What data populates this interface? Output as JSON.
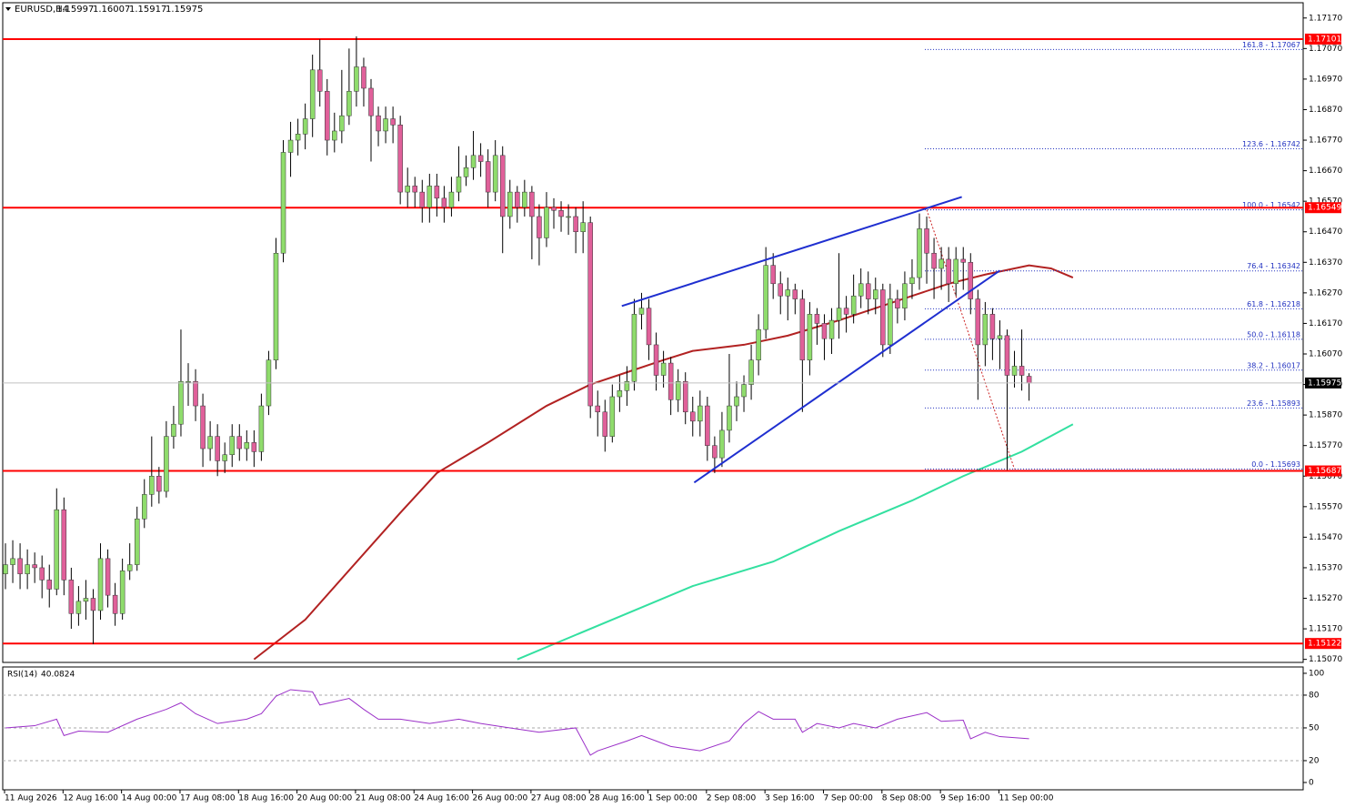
{
  "chart_data": {
    "type": "candlestick",
    "symbol": "EURUSD,H4",
    "ylim": [
      1.1506,
      1.1722
    ],
    "yticks": [
      {
        "value": 1.1717,
        "label": "1.17170"
      },
      {
        "value": 1.1707,
        "label": "1.17070"
      },
      {
        "value": 1.1697,
        "label": "1.16970"
      },
      {
        "value": 1.1687,
        "label": "1.16870"
      },
      {
        "value": 1.1677,
        "label": "1.16770"
      },
      {
        "value": 1.1667,
        "label": "1.16670"
      },
      {
        "value": 1.1657,
        "label": "1.16570"
      },
      {
        "value": 1.1647,
        "label": "1.16470"
      },
      {
        "value": 1.1637,
        "label": "1.16370"
      },
      {
        "value": 1.1627,
        "label": "1.16270"
      },
      {
        "value": 1.1617,
        "label": "1.16170"
      },
      {
        "value": 1.1607,
        "label": "1.16070"
      },
      {
        "value": 1.1597,
        "label": "1.15970"
      },
      {
        "value": 1.1587,
        "label": "1.15870"
      },
      {
        "value": 1.1577,
        "label": "1.15770"
      },
      {
        "value": 1.1567,
        "label": "1.15670"
      },
      {
        "value": 1.1557,
        "label": "1.15570"
      },
      {
        "value": 1.1547,
        "label": "1.15470"
      },
      {
        "value": 1.1537,
        "label": "1.15370"
      },
      {
        "value": 1.1527,
        "label": "1.15270"
      },
      {
        "value": 1.1517,
        "label": "1.15170"
      },
      {
        "value": 1.1507,
        "label": "1.15070"
      }
    ],
    "x_labels": [
      "11 Aug 2026",
      "12 Aug 16:00",
      "14 Aug 00:00",
      "17 Aug 08:00",
      "18 Aug 16:00",
      "20 Aug 00:00",
      "21 Aug 08:00",
      "24 Aug 16:00",
      "26 Aug 00:00",
      "27 Aug 08:00",
      "28 Aug 16:00",
      "1 Sep 00:00",
      "2 Sep 08:00",
      "3 Sep 16:00",
      "7 Sep 00:00",
      "8 Sep 08:00",
      "9 Sep 16:00",
      "11 Sep 00:00"
    ],
    "bull_color": "#8fdc6c",
    "bear_color": "#e0609a",
    "wick_color": "#000000",
    "candles": {
      "open": [
        1.1535,
        1.1538,
        1.154,
        1.1535,
        1.1538,
        1.1537,
        1.1533,
        1.153,
        1.1556,
        1.1533,
        1.1522,
        1.1526,
        1.1527,
        1.1523,
        1.154,
        1.1528,
        1.1522,
        1.1536,
        1.1538,
        1.1553,
        1.1561,
        1.1567,
        1.1562,
        1.158,
        1.1584,
        1.1598,
        1.1598,
        1.159,
        1.1576,
        1.158,
        1.1572,
        1.1574,
        1.158,
        1.1576,
        1.1578,
        1.1575,
        1.159,
        1.1605,
        1.164,
        1.1673,
        1.1677,
        1.1679,
        1.1684,
        1.17,
        1.1693,
        1.1677,
        1.168,
        1.1685,
        1.1693,
        1.1701,
        1.1694,
        1.1685,
        1.168,
        1.1684,
        1.1682,
        1.166,
        1.1662,
        1.166,
        1.1655,
        1.1662,
        1.1658,
        1.1655,
        1.166,
        1.1665,
        1.1668,
        1.1672,
        1.167,
        1.166,
        1.1672,
        1.1652,
        1.166,
        1.1655,
        1.166,
        1.1652,
        1.1645,
        1.1655,
        1.1654,
        1.1652,
        1.1652,
        1.1647,
        1.165,
        1.159,
        1.1588,
        1.158,
        1.1593,
        1.1595,
        1.1598,
        1.162,
        1.1622,
        1.161,
        1.16,
        1.1604,
        1.1592,
        1.1598,
        1.1588,
        1.1585,
        1.159,
        1.1577,
        1.1573,
        1.1582,
        1.159,
        1.1593,
        1.1597,
        1.1605,
        1.1615,
        1.1636,
        1.163,
        1.1626,
        1.1628,
        1.1625,
        1.1605,
        1.162,
        1.1617,
        1.1612,
        1.1618,
        1.1622,
        1.162,
        1.1626,
        1.163,
        1.1625,
        1.1628,
        1.161,
        1.1625,
        1.1622,
        1.163,
        1.1632,
        1.1648,
        1.164,
        1.1635,
        1.1638,
        1.163,
        1.1638,
        1.1637,
        1.1625,
        1.161,
        1.162,
        1.1612,
        1.1613,
        1.16,
        1.1603,
        1.15997
      ],
      "high": [
        1.1545,
        1.1546,
        1.1545,
        1.1543,
        1.1542,
        1.1541,
        1.1538,
        1.1563,
        1.156,
        1.1537,
        1.1531,
        1.1533,
        1.153,
        1.1545,
        1.1543,
        1.1532,
        1.154,
        1.1545,
        1.1557,
        1.1566,
        1.158,
        1.157,
        1.1585,
        1.159,
        1.1615,
        1.1604,
        1.1602,
        1.1594,
        1.1585,
        1.1584,
        1.1578,
        1.1584,
        1.1584,
        1.1582,
        1.1582,
        1.1594,
        1.1608,
        1.1645,
        1.1677,
        1.1683,
        1.1684,
        1.1689,
        1.1705,
        1.171,
        1.1697,
        1.1686,
        1.17,
        1.1707,
        1.1711,
        1.1704,
        1.1697,
        1.1688,
        1.1688,
        1.1688,
        1.1685,
        1.1668,
        1.1665,
        1.1664,
        1.1666,
        1.1666,
        1.1662,
        1.1665,
        1.1675,
        1.1672,
        1.168,
        1.1676,
        1.1674,
        1.1677,
        1.1675,
        1.1664,
        1.1662,
        1.1664,
        1.1662,
        1.1656,
        1.166,
        1.1658,
        1.1657,
        1.1656,
        1.1655,
        1.1657,
        1.1652,
        1.1595,
        1.1592,
        1.1597,
        1.16,
        1.1603,
        1.1625,
        1.1627,
        1.1625,
        1.1614,
        1.1608,
        1.1606,
        1.1602,
        1.1601,
        1.1593,
        1.1595,
        1.1593,
        1.158,
        1.1588,
        1.1607,
        1.1598,
        1.16,
        1.161,
        1.162,
        1.1642,
        1.164,
        1.1634,
        1.1632,
        1.163,
        1.1628,
        1.1624,
        1.1622,
        1.162,
        1.1622,
        1.164,
        1.1626,
        1.1633,
        1.1635,
        1.1634,
        1.1632,
        1.163,
        1.163,
        1.1628,
        1.1634,
        1.1638,
        1.1653,
        1.1652,
        1.1645,
        1.1642,
        1.1642,
        1.1642,
        1.1642,
        1.164,
        1.1628,
        1.1624,
        1.1622,
        1.1618,
        1.1615,
        1.1608,
        1.1615,
        1.16007
      ],
      "low": [
        1.153,
        1.1532,
        1.153,
        1.153,
        1.1532,
        1.1527,
        1.1524,
        1.1528,
        1.1528,
        1.1517,
        1.1518,
        1.152,
        1.1512,
        1.152,
        1.1524,
        1.1518,
        1.152,
        1.1533,
        1.1536,
        1.155,
        1.1557,
        1.1558,
        1.156,
        1.1576,
        1.158,
        1.159,
        1.1585,
        1.157,
        1.1572,
        1.1567,
        1.1568,
        1.157,
        1.1572,
        1.1572,
        1.157,
        1.1572,
        1.1587,
        1.1602,
        1.1637,
        1.1665,
        1.1672,
        1.1674,
        1.1678,
        1.1688,
        1.1672,
        1.1673,
        1.1676,
        1.1682,
        1.1688,
        1.1688,
        1.167,
        1.1675,
        1.1676,
        1.1676,
        1.1656,
        1.1655,
        1.1655,
        1.165,
        1.165,
        1.1652,
        1.165,
        1.1652,
        1.1657,
        1.1662,
        1.1664,
        1.1665,
        1.1655,
        1.1657,
        1.164,
        1.1648,
        1.165,
        1.1652,
        1.1638,
        1.1636,
        1.1642,
        1.1648,
        1.1647,
        1.1646,
        1.164,
        1.164,
        1.1586,
        1.158,
        1.1575,
        1.1578,
        1.1588,
        1.159,
        1.1595,
        1.1615,
        1.1605,
        1.1595,
        1.1596,
        1.1587,
        1.1588,
        1.1584,
        1.158,
        1.158,
        1.1572,
        1.1568,
        1.157,
        1.1578,
        1.1585,
        1.1588,
        1.1592,
        1.16,
        1.1612,
        1.1625,
        1.162,
        1.1618,
        1.162,
        1.1588,
        1.16,
        1.161,
        1.1605,
        1.1607,
        1.1612,
        1.1614,
        1.1617,
        1.1622,
        1.162,
        1.162,
        1.1606,
        1.1607,
        1.1617,
        1.1618,
        1.1625,
        1.1628,
        1.163,
        1.1625,
        1.1628,
        1.1624,
        1.1626,
        1.1628,
        1.162,
        1.1592,
        1.1603,
        1.1605,
        1.1602,
        1.1569,
        1.1596,
        1.1595,
        1.15917
      ],
      "close": [
        1.1538,
        1.154,
        1.1535,
        1.1538,
        1.1537,
        1.1533,
        1.153,
        1.1556,
        1.1533,
        1.1522,
        1.1526,
        1.1527,
        1.1523,
        1.154,
        1.1528,
        1.1522,
        1.1536,
        1.1538,
        1.1553,
        1.1561,
        1.1567,
        1.1562,
        1.158,
        1.1584,
        1.1598,
        1.1598,
        1.159,
        1.1576,
        1.158,
        1.1572,
        1.1574,
        1.158,
        1.1576,
        1.1578,
        1.1575,
        1.159,
        1.1605,
        1.164,
        1.1673,
        1.1677,
        1.1679,
        1.1684,
        1.17,
        1.1693,
        1.1677,
        1.168,
        1.1685,
        1.1693,
        1.1701,
        1.1694,
        1.1685,
        1.168,
        1.1684,
        1.1682,
        1.166,
        1.1662,
        1.166,
        1.1655,
        1.1662,
        1.1658,
        1.1655,
        1.166,
        1.1665,
        1.1668,
        1.1672,
        1.167,
        1.166,
        1.1672,
        1.1652,
        1.166,
        1.1655,
        1.166,
        1.1652,
        1.1645,
        1.1655,
        1.1654,
        1.1652,
        1.1652,
        1.1647,
        1.165,
        1.159,
        1.1588,
        1.158,
        1.1593,
        1.1595,
        1.1598,
        1.162,
        1.1622,
        1.161,
        1.16,
        1.1604,
        1.1592,
        1.1598,
        1.1588,
        1.1585,
        1.159,
        1.1577,
        1.1573,
        1.1582,
        1.159,
        1.1593,
        1.1597,
        1.1605,
        1.1615,
        1.1636,
        1.163,
        1.1626,
        1.1628,
        1.1625,
        1.1605,
        1.162,
        1.1617,
        1.1612,
        1.1618,
        1.1622,
        1.162,
        1.1626,
        1.163,
        1.1625,
        1.1628,
        1.161,
        1.1625,
        1.1622,
        1.163,
        1.1632,
        1.1648,
        1.164,
        1.1635,
        1.1638,
        1.163,
        1.1638,
        1.1637,
        1.1625,
        1.161,
        1.162,
        1.1612,
        1.1613,
        1.16,
        1.1603,
        1.16,
        1.15975
      ]
    },
    "levels": {
      "color": "#ff0000",
      "values": [
        1.17101,
        1.16549,
        1.15687,
        1.15122
      ]
    },
    "moving_averages": [
      {
        "color": "#b22222",
        "x": [
          34,
          41,
          54,
          59,
          66,
          74,
          80,
          85,
          90,
          94,
          101,
          107,
          114,
          119,
          124,
          129,
          134,
          136,
          140,
          143,
          146
        ],
        "values": [
          1.1507,
          1.152,
          1.1555,
          1.1568,
          1.1578,
          1.159,
          1.1597,
          1.1601,
          1.1605,
          1.1608,
          1.161,
          1.1613,
          1.1618,
          1.1622,
          1.1626,
          1.163,
          1.1633,
          1.1634,
          1.1636,
          1.1635,
          1.1632
        ]
      },
      {
        "color": "#33e0a0",
        "x": [
          70,
          76,
          86,
          94,
          105,
          114,
          124,
          131,
          139,
          146
        ],
        "values": [
          1.1507,
          1.1513,
          1.1523,
          1.1531,
          1.1539,
          1.1549,
          1.1559,
          1.1567,
          1.1575,
          1.1584
        ]
      }
    ],
    "trendlines": [
      {
        "color": "#1f2fd0",
        "x": [
          84.3,
          130.8
        ],
        "values": [
          1.16227,
          1.16584
        ]
      },
      {
        "color": "#1f2fd0",
        "x": [
          94.2,
          136.0
        ],
        "values": [
          1.15649,
          1.16343
        ]
      }
    ],
    "fibonacci": {
      "color": "#2030c0",
      "anchor_color": "#cc2222",
      "anchor_x": [
        126,
        138
      ],
      "levels": [
        {
          "value": 1.17067,
          "label": "161.8 - 1.17067"
        },
        {
          "value": 1.16742,
          "label": "123.6 - 1.16742"
        },
        {
          "value": 1.16542,
          "label": "100.0 - 1.16542"
        },
        {
          "value": 1.16342,
          "label": "76.4 - 1.16342"
        },
        {
          "value": 1.16218,
          "label": "61.8 - 1.16218"
        },
        {
          "value": 1.16118,
          "label": "50.0 - 1.16118"
        },
        {
          "value": 1.16017,
          "label": "38.2 - 1.16017"
        },
        {
          "value": 1.15893,
          "label": "23.6 - 1.15893"
        },
        {
          "value": 1.15693,
          "label": "0.0 - 1.15693"
        }
      ]
    },
    "rsi": {
      "name": "RSI(14)",
      "color": "#9b30c8",
      "ylim": [
        -6.7,
        105.8
      ],
      "yticks": [
        100,
        80,
        50,
        20,
        0
      ],
      "x": [
        0,
        4,
        7,
        8,
        10,
        14,
        18,
        22,
        24,
        26,
        29,
        33,
        35,
        37,
        39,
        42,
        43,
        47,
        49,
        51,
        54,
        58,
        62,
        65,
        69,
        73,
        78,
        80,
        81,
        85,
        87,
        89,
        91,
        95,
        99,
        101,
        103,
        105,
        108,
        109,
        111,
        114,
        116,
        119,
        122,
        126,
        128,
        131,
        132,
        134,
        136,
        140
      ],
      "values": [
        50,
        52,
        58,
        43,
        47,
        46,
        58,
        67,
        73,
        63,
        54,
        58,
        63,
        79,
        85,
        83,
        71,
        77,
        67,
        58,
        58,
        54,
        58,
        54,
        50,
        46,
        50,
        25,
        29,
        38,
        43,
        38,
        33,
        29,
        38,
        54,
        65,
        58,
        58,
        46,
        54,
        50,
        54,
        50,
        58,
        64,
        56,
        57,
        40,
        46,
        42,
        40.0824
      ]
    }
  }
}
